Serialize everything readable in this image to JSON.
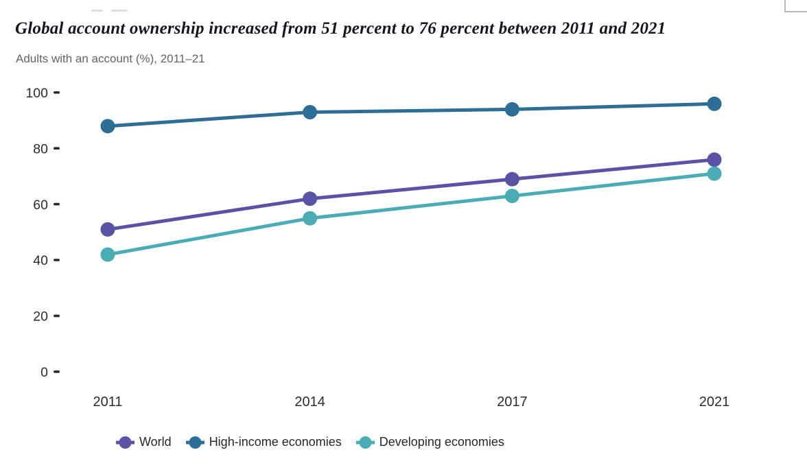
{
  "header": {
    "title": "Global account ownership increased from 51 percent to 76 percent between 2011 and 2021",
    "subtitle": "Adults with an account (%), 2011–21"
  },
  "chart_data": {
    "type": "line",
    "title": "Global account ownership increased from 51 percent to 76 percent between 2011 and 2021",
    "subtitle": "Adults with an account (%), 2011–21",
    "categories": [
      "2011",
      "2014",
      "2017",
      "2021"
    ],
    "series": [
      {
        "name": "World",
        "color": "#5b52a5",
        "values": [
          51,
          62,
          69,
          76
        ]
      },
      {
        "name": "High-income economies",
        "color": "#2e6d96",
        "values": [
          88,
          93,
          94,
          96
        ]
      },
      {
        "name": "Developing economies",
        "color": "#4aacb4",
        "values": [
          42,
          55,
          63,
          71
        ]
      }
    ],
    "xlabel": "",
    "ylabel": "",
    "ylim": [
      0,
      100
    ],
    "yticks": [
      0,
      20,
      40,
      60,
      80,
      100
    ],
    "grid": false,
    "legend_position": "bottom",
    "marker": "circle",
    "axis_text_color": "#2b2b33"
  }
}
